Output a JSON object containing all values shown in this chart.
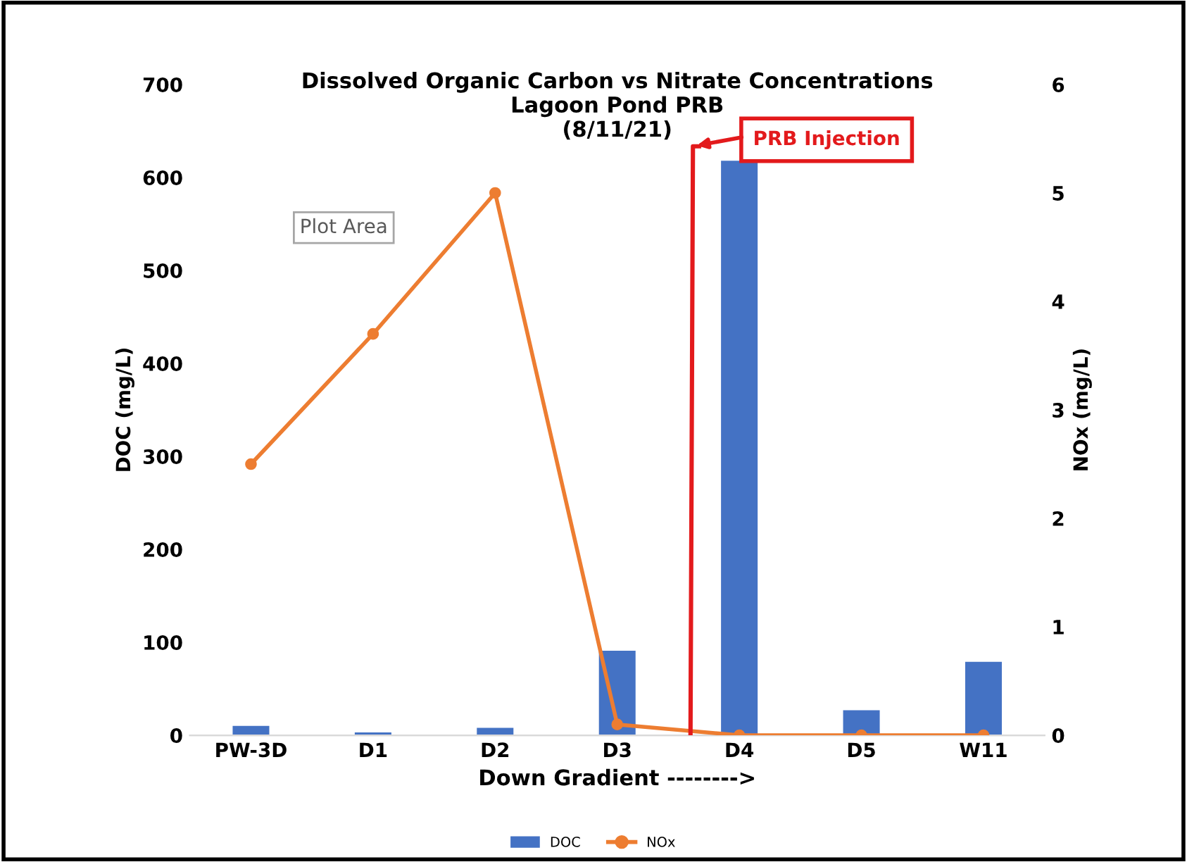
{
  "chart_data": {
    "type": "bar",
    "title": "Dissolved Organic Carbon vs Nitrate Concentrations\nLagoon Pond PRB\n(8/11/21)",
    "xlabel": "Down Gradient -------->",
    "ylabel": "DOC (mg/L)",
    "y2label": "NOx (mg/L)",
    "categories": [
      "PW-3D",
      "D1",
      "D2",
      "D3",
      "D4",
      "D5",
      "W11"
    ],
    "series": [
      {
        "name": "DOC",
        "color": "#4472c4",
        "values": [
          10,
          3,
          8,
          91,
          618,
          27,
          79
        ]
      },
      {
        "name": "NOx",
        "color": "#ed7d31",
        "type": "line",
        "axis": "y2",
        "marker": "circle",
        "values": [
          2.5,
          3.7,
          5.0,
          0.1,
          0,
          0,
          0
        ]
      }
    ],
    "ylim": [
      0,
      700
    ],
    "yticks": [
      0,
      100,
      200,
      300,
      400,
      500,
      600,
      700
    ],
    "y2lim": [
      0,
      6
    ],
    "y2ticks": [
      0,
      1,
      2,
      3,
      4,
      5,
      6
    ],
    "grid": false,
    "legend": "bottom",
    "annotations": [
      "PRB Injection",
      "Plot Area"
    ]
  }
}
